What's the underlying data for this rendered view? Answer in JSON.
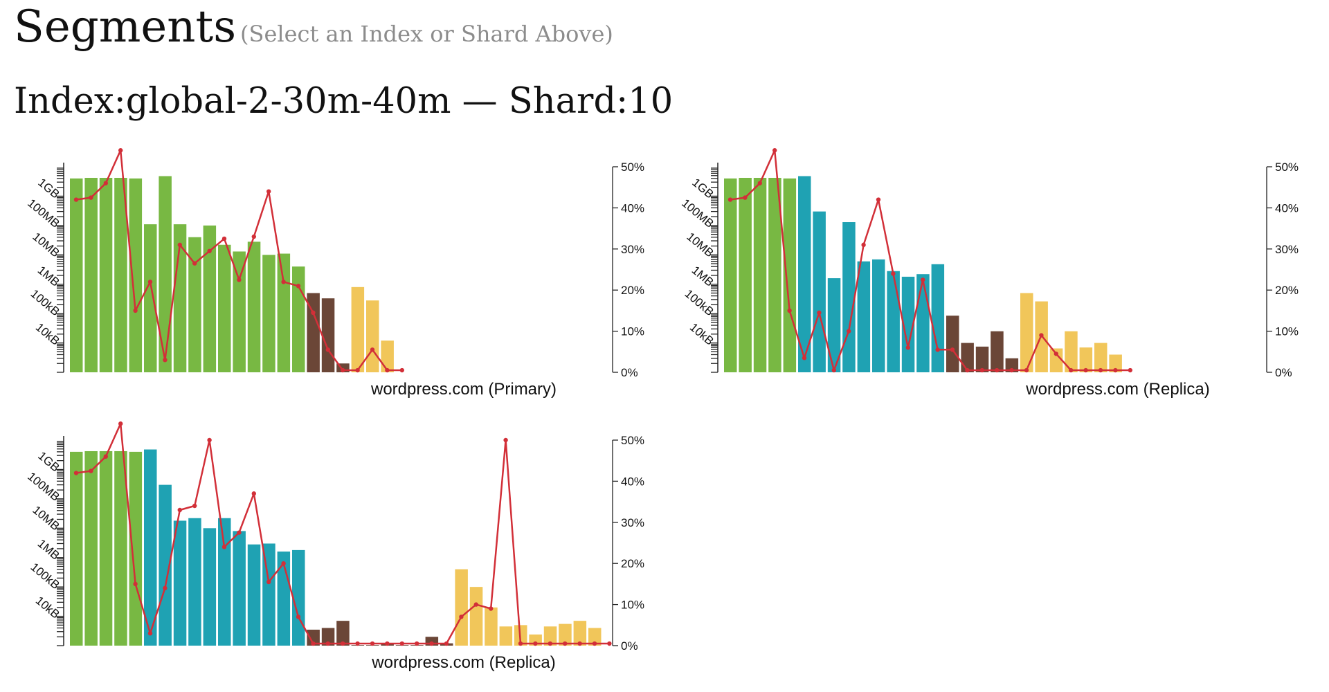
{
  "header": {
    "title": "Segments",
    "hint": "(Select an Index or Shard Above)",
    "subtitle": "Index:global-2-30m-40m — Shard:10"
  },
  "legend_colors": {
    "large_segment": "#78b843",
    "medium_segment": "#1fa2b3",
    "small_segment": "#6b4637",
    "tiny_segment": "#f1c65a",
    "deleted_ratio_line": "#d22f38"
  },
  "chart_data": [
    {
      "type": "bar",
      "title": "wordpress.com (Primary)",
      "y_left": {
        "scale": "log",
        "unit": "bytes",
        "range": [
          1000,
          10000000000
        ],
        "ticks": [
          "10kB",
          "100kB",
          "1MB",
          "10MB",
          "100MB",
          "1GB"
        ]
      },
      "y_right": {
        "range": [
          0,
          0.5
        ],
        "ticks": [
          "0%",
          "10%",
          "20%",
          "30%",
          "40%",
          "50%"
        ]
      },
      "series": [
        {
          "name": "",
          "kind": "bar",
          "values": [
            {
              "size": 4000000000,
              "tier": "large_segment"
            },
            {
              "size": 4200000000,
              "tier": "large_segment"
            },
            {
              "size": 4200000000,
              "tier": "large_segment"
            },
            {
              "size": 4200000000,
              "tier": "large_segment"
            },
            {
              "size": 4000000000,
              "tier": "large_segment"
            },
            {
              "size": 110000000,
              "tier": "large_segment"
            },
            {
              "size": 4800000000,
              "tier": "large_segment"
            },
            {
              "size": 110000000,
              "tier": "large_segment"
            },
            {
              "size": 40000000,
              "tier": "large_segment"
            },
            {
              "size": 100000000,
              "tier": "large_segment"
            },
            {
              "size": 22000000,
              "tier": "large_segment"
            },
            {
              "size": 13000000,
              "tier": "large_segment"
            },
            {
              "size": 28000000,
              "tier": "large_segment"
            },
            {
              "size": 10000000,
              "tier": "large_segment"
            },
            {
              "size": 11000000,
              "tier": "large_segment"
            },
            {
              "size": 4000000,
              "tier": "large_segment"
            },
            {
              "size": 500000,
              "tier": "small_segment"
            },
            {
              "size": 330000,
              "tier": "small_segment"
            },
            {
              "size": 2000,
              "tier": "small_segment"
            },
            {
              "size": 800000,
              "tier": "tiny_segment"
            },
            {
              "size": 280000,
              "tier": "tiny_segment"
            },
            {
              "size": 12000,
              "tier": "tiny_segment"
            }
          ]
        },
        {
          "name": "",
          "kind": "line",
          "values": [
            0.42,
            0.425,
            0.46,
            0.54,
            0.15,
            0.22,
            0.03,
            0.31,
            0.265,
            0.295,
            0.325,
            0.225,
            0.33,
            0.44,
            0.22,
            0.21,
            0.145,
            0.055,
            0.005,
            0.005,
            0.055,
            0.005,
            0.005
          ]
        }
      ],
      "grid": false
    },
    {
      "type": "bar",
      "title": "wordpress.com (Replica)",
      "y_left": {
        "scale": "log",
        "unit": "bytes",
        "range": [
          1000,
          10000000000
        ],
        "ticks": [
          "10kB",
          "100kB",
          "1MB",
          "10MB",
          "100MB",
          "1GB"
        ]
      },
      "y_right": {
        "range": [
          0,
          0.5
        ],
        "ticks": [
          "0%",
          "10%",
          "20%",
          "30%",
          "40%",
          "50%"
        ]
      },
      "series": [
        {
          "name": "",
          "kind": "bar",
          "values": [
            {
              "size": 4000000000,
              "tier": "large_segment"
            },
            {
              "size": 4200000000,
              "tier": "large_segment"
            },
            {
              "size": 4200000000,
              "tier": "large_segment"
            },
            {
              "size": 4200000000,
              "tier": "large_segment"
            },
            {
              "size": 4000000000,
              "tier": "large_segment"
            },
            {
              "size": 4800000000,
              "tier": "medium_segment"
            },
            {
              "size": 300000000,
              "tier": "medium_segment"
            },
            {
              "size": 1600000,
              "tier": "medium_segment"
            },
            {
              "size": 130000000,
              "tier": "medium_segment"
            },
            {
              "size": 6000000,
              "tier": "medium_segment"
            },
            {
              "size": 7000000,
              "tier": "medium_segment"
            },
            {
              "size": 2800000,
              "tier": "medium_segment"
            },
            {
              "size": 1800000,
              "tier": "medium_segment"
            },
            {
              "size": 2200000,
              "tier": "medium_segment"
            },
            {
              "size": 4800000,
              "tier": "medium_segment"
            },
            {
              "size": 85000,
              "tier": "small_segment"
            },
            {
              "size": 10000,
              "tier": "small_segment"
            },
            {
              "size": 7500,
              "tier": "small_segment"
            },
            {
              "size": 25000,
              "tier": "small_segment"
            },
            {
              "size": 3000,
              "tier": "small_segment"
            },
            {
              "size": 500000,
              "tier": "tiny_segment"
            },
            {
              "size": 260000,
              "tier": "tiny_segment"
            },
            {
              "size": 6500,
              "tier": "tiny_segment"
            },
            {
              "size": 25000,
              "tier": "tiny_segment"
            },
            {
              "size": 7000,
              "tier": "tiny_segment"
            },
            {
              "size": 10000,
              "tier": "tiny_segment"
            },
            {
              "size": 4000,
              "tier": "tiny_segment"
            }
          ]
        },
        {
          "name": "",
          "kind": "line",
          "values": [
            0.42,
            0.425,
            0.46,
            0.54,
            0.15,
            0.035,
            0.145,
            0.005,
            0.1,
            0.31,
            0.42,
            0.24,
            0.06,
            0.225,
            0.055,
            0.055,
            0.005,
            0.005,
            0.005,
            0.005,
            0.005,
            0.09,
            0.045,
            0.005,
            0.005,
            0.005,
            0.005,
            0.005
          ]
        }
      ],
      "grid": false
    },
    {
      "type": "bar",
      "title": "wordpress.com (Replica)",
      "y_left": {
        "scale": "log",
        "unit": "bytes",
        "range": [
          1000,
          10000000000
        ],
        "ticks": [
          "10kB",
          "100kB",
          "1MB",
          "10MB",
          "100MB",
          "1GB"
        ]
      },
      "y_right": {
        "range": [
          0,
          0.5
        ],
        "ticks": [
          "0%",
          "10%",
          "20%",
          "30%",
          "40%",
          "50%"
        ]
      },
      "series": [
        {
          "name": "",
          "kind": "bar",
          "values": [
            {
              "size": 4000000000,
              "tier": "large_segment"
            },
            {
              "size": 4200000000,
              "tier": "large_segment"
            },
            {
              "size": 4200000000,
              "tier": "large_segment"
            },
            {
              "size": 4200000000,
              "tier": "large_segment"
            },
            {
              "size": 4000000000,
              "tier": "large_segment"
            },
            {
              "size": 4800000000,
              "tier": "medium_segment"
            },
            {
              "size": 300000000,
              "tier": "medium_segment"
            },
            {
              "size": 18000000,
              "tier": "medium_segment"
            },
            {
              "size": 22000000,
              "tier": "medium_segment"
            },
            {
              "size": 10000000,
              "tier": "medium_segment"
            },
            {
              "size": 22000000,
              "tier": "medium_segment"
            },
            {
              "size": 8000000,
              "tier": "medium_segment"
            },
            {
              "size": 2800000,
              "tier": "medium_segment"
            },
            {
              "size": 3000000,
              "tier": "medium_segment"
            },
            {
              "size": 1600000,
              "tier": "medium_segment"
            },
            {
              "size": 1800000,
              "tier": "medium_segment"
            },
            {
              "size": 3500,
              "tier": "small_segment"
            },
            {
              "size": 4000,
              "tier": "small_segment"
            },
            {
              "size": 7000,
              "tier": "small_segment"
            },
            {
              "size": 1050,
              "tier": "small_segment"
            },
            {
              "size": 1050,
              "tier": "small_segment"
            },
            {
              "size": 1200,
              "tier": "small_segment"
            },
            {
              "size": 1050,
              "tier": "small_segment"
            },
            {
              "size": 1050,
              "tier": "small_segment"
            },
            {
              "size": 2000,
              "tier": "small_segment"
            },
            {
              "size": 1200,
              "tier": "small_segment"
            },
            {
              "size": 400000,
              "tier": "tiny_segment"
            },
            {
              "size": 100000,
              "tier": "tiny_segment"
            },
            {
              "size": 20000,
              "tier": "tiny_segment"
            },
            {
              "size": 4500,
              "tier": "tiny_segment"
            },
            {
              "size": 5000,
              "tier": "tiny_segment"
            },
            {
              "size": 2400,
              "tier": "tiny_segment"
            },
            {
              "size": 4500,
              "tier": "tiny_segment"
            },
            {
              "size": 5500,
              "tier": "tiny_segment"
            },
            {
              "size": 7000,
              "tier": "tiny_segment"
            },
            {
              "size": 4000,
              "tier": "tiny_segment"
            }
          ]
        },
        {
          "name": "",
          "kind": "line",
          "values": [
            0.42,
            0.425,
            0.46,
            0.54,
            0.15,
            0.03,
            0.14,
            0.33,
            0.34,
            0.5,
            0.24,
            0.275,
            0.37,
            0.155,
            0.2,
            0.07,
            0.005,
            0.005,
            0.005,
            0.005,
            0.005,
            0.005,
            0.005,
            0.005,
            0.005,
            0.005,
            0.07,
            0.1,
            0.09,
            0.5,
            0.005,
            0.005,
            0.005,
            0.005,
            0.005,
            0.005,
            0.005
          ]
        }
      ],
      "grid": false
    }
  ]
}
